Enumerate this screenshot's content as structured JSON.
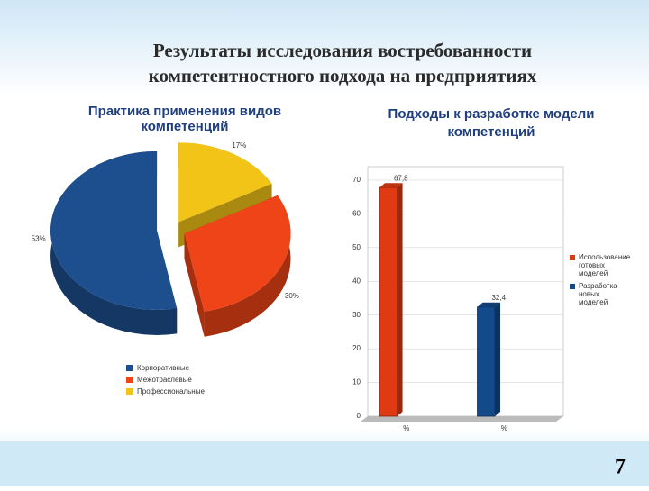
{
  "title_lines": [
    "Результаты исследования востребованности",
    "компетентностного подхода на предприятиях"
  ],
  "page_number": "7",
  "chart_data": [
    {
      "type": "pie",
      "title": "Практика применения видов компетенций",
      "categories": [
        "Профессиональные",
        "Межотраслевые",
        "Корпоративные"
      ],
      "values": [
        17,
        30,
        53
      ],
      "value_labels": [
        "17%",
        "30%",
        "53%"
      ],
      "colors": [
        "#f2c417",
        "#ee4417",
        "#1d4f8f"
      ]
    },
    {
      "type": "bar",
      "title": "Подходы к разработке модели компетенций",
      "categories": [
        "%",
        "%"
      ],
      "values": [
        67.8,
        32.4
      ],
      "value_labels": [
        "67,8",
        "32,4"
      ],
      "colors": [
        "#e03a12",
        "#124a8a"
      ],
      "legend_labels": [
        "Использование готовых моделей",
        "Разработка новых моделей"
      ],
      "ylim": [
        0,
        74
      ],
      "yticks": [
        0,
        10,
        20,
        30,
        40,
        50,
        60,
        70
      ],
      "grid": true
    }
  ]
}
